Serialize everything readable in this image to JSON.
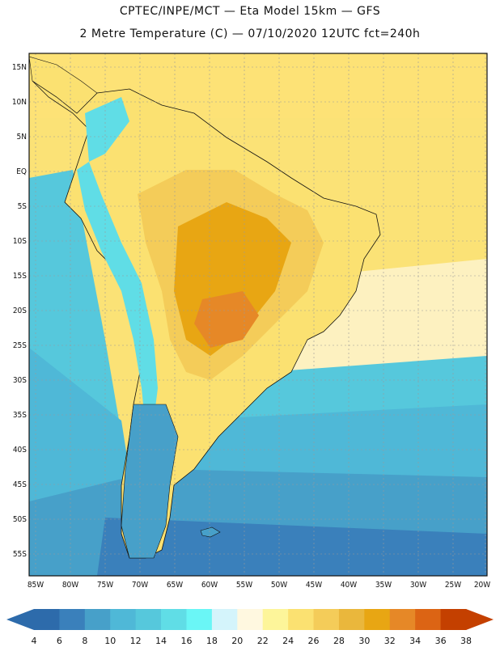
{
  "title": {
    "line1": "CPTEC/INPE/MCT — Eta Model 15km — GFS",
    "line2": "2 Metre Temperature (C) — 07/10/2020 12UTC fct=240h"
  },
  "axes": {
    "lat_labels": [
      "15N",
      "10N",
      "5N",
      "EQ",
      "5S",
      "10S",
      "15S",
      "20S",
      "25S",
      "30S",
      "35S",
      "40S",
      "45S",
      "50S",
      "55S"
    ],
    "lon_labels": [
      "85W",
      "80W",
      "75W",
      "70W",
      "65W",
      "60W",
      "55W",
      "50W",
      "45W",
      "40W",
      "35W",
      "30W",
      "25W",
      "20W"
    ]
  },
  "colorbar": {
    "labels": [
      "4",
      "6",
      "8",
      "10",
      "12",
      "14",
      "16",
      "18",
      "20",
      "22",
      "24",
      "26",
      "28",
      "30",
      "32",
      "34",
      "36",
      "38"
    ],
    "colors": [
      "#2d6bab",
      "#3a80bb",
      "#47a0c9",
      "#4fb8d7",
      "#56c8dc",
      "#60dde6",
      "#6af6f6",
      "#d4f4fb",
      "#fff8e0",
      "#fdf59a",
      "#fbe171",
      "#f4cc59",
      "#eab73c",
      "#e8a613",
      "#e68827",
      "#dc6414",
      "#c44000"
    ]
  },
  "map_colors": {
    "ocean_warm": "#fde276",
    "ocean_tropical": "#fbe276",
    "ocean_pale": "#fdf1c0",
    "ocean_cool1": "#56c8dc",
    "ocean_cool2": "#4fb8d7",
    "ocean_cold1": "#47a0c9",
    "ocean_cold2": "#3a80bb",
    "land_hot": "#e8a613",
    "land_warm": "#f4cc59",
    "land_mild": "#fbe171",
    "andes": "#60dde6"
  }
}
